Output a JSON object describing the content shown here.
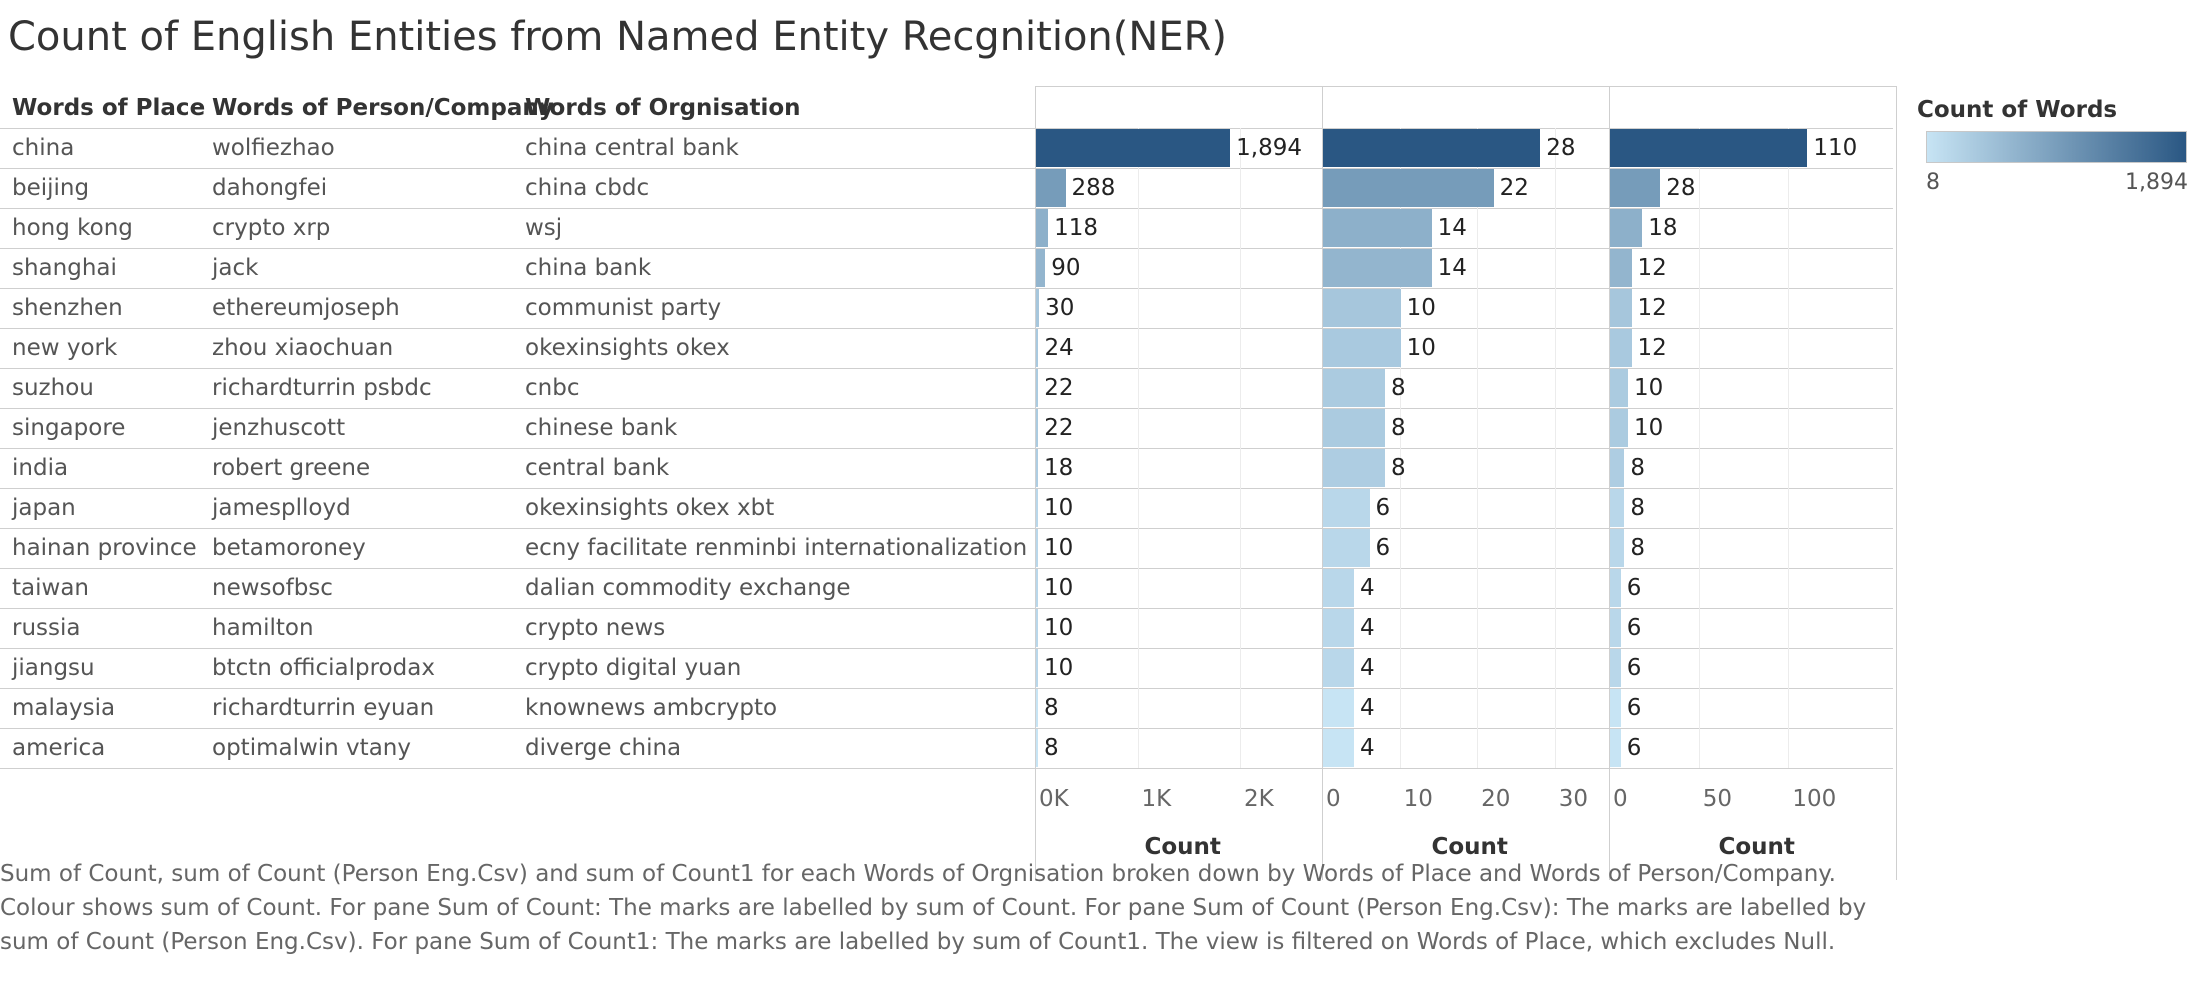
{
  "title": "Count of English Entities from Named Entity Recgnition(NER)",
  "headers": {
    "place": "Words of Place",
    "person": "Words of Person/Company",
    "organisation": "Words of Orgnisation"
  },
  "rows": [
    {
      "place": "china",
      "person": "wolfiezhao",
      "org": "china central bank"
    },
    {
      "place": "beijing",
      "person": "dahongfei",
      "org": "china cbdc"
    },
    {
      "place": "hong kong",
      "person": "crypto xrp",
      "org": "wsj"
    },
    {
      "place": "shanghai",
      "person": "jack",
      "org": "china bank"
    },
    {
      "place": "shenzhen",
      "person": "ethereumjoseph",
      "org": "communist party"
    },
    {
      "place": "new york",
      "person": "zhou xiaochuan",
      "org": "okexinsights okex"
    },
    {
      "place": "suzhou",
      "person": "richardturrin psbdc",
      "org": "cnbc"
    },
    {
      "place": "singapore",
      "person": "jenzhuscott",
      "org": "chinese bank"
    },
    {
      "place": "india",
      "person": "robert greene",
      "org": "central bank"
    },
    {
      "place": "japan",
      "person": "jamesplloyd",
      "org": "okexinsights okex xbt"
    },
    {
      "place": "hainan province",
      "person": "betamoroney",
      "org": "ecny facilitate renminbi internationalization"
    },
    {
      "place": "taiwan",
      "person": "newsofbsc",
      "org": "dalian commodity exchange"
    },
    {
      "place": "russia",
      "person": "hamilton",
      "org": "crypto news"
    },
    {
      "place": "jiangsu",
      "person": "btctn officialprodax",
      "org": "crypto digital yuan"
    },
    {
      "place": "malaysia",
      "person": "richardturrin eyuan",
      "org": "knownews ambcrypto"
    },
    {
      "place": "america",
      "person": "optimalwin vtany",
      "org": "diverge china"
    }
  ],
  "chart_data": [
    {
      "type": "bar",
      "orientation": "horizontal",
      "categories": [
        "china",
        "beijing",
        "hong kong",
        "shanghai",
        "shenzhen",
        "new york",
        "suzhou",
        "singapore",
        "india",
        "japan",
        "hainan province",
        "taiwan",
        "russia",
        "jiangsu",
        "malaysia",
        "america"
      ],
      "values": [
        1894,
        288,
        118,
        90,
        30,
        24,
        22,
        22,
        18,
        10,
        10,
        10,
        10,
        10,
        8,
        8
      ],
      "labels": [
        "1,894",
        "288",
        "118",
        "90",
        "30",
        "24",
        "22",
        "22",
        "18",
        "10",
        "10",
        "10",
        "10",
        "10",
        "8",
        "8"
      ],
      "xlabel": "Count",
      "xlim": [
        0,
        2800
      ],
      "ticks": [
        0,
        1000,
        2000
      ],
      "tick_labels": [
        "0K",
        "1K",
        "2K"
      ]
    },
    {
      "type": "bar",
      "orientation": "horizontal",
      "categories": [
        "wolfiezhao",
        "dahongfei",
        "crypto xrp",
        "jack",
        "ethereumjoseph",
        "zhou xiaochuan",
        "richardturrin psbdc",
        "jenzhuscott",
        "robert greene",
        "jamesplloyd",
        "betamoroney",
        "newsofbsc",
        "hamilton",
        "btctn officialprodax",
        "richardturrin eyuan",
        "optimalwin vtany"
      ],
      "values": [
        28,
        22,
        14,
        14,
        10,
        10,
        8,
        8,
        8,
        6,
        6,
        4,
        4,
        4,
        4,
        4
      ],
      "labels": [
        "28",
        "22",
        "14",
        "14",
        "10",
        "10",
        "8",
        "8",
        "8",
        "6",
        "6",
        "4",
        "4",
        "4",
        "4",
        "4"
      ],
      "xlabel": "Count",
      "xlim": [
        0,
        37
      ],
      "ticks": [
        0,
        10,
        20,
        30
      ],
      "tick_labels": [
        "0",
        "10",
        "20",
        "30"
      ]
    },
    {
      "type": "bar",
      "orientation": "horizontal",
      "categories": [
        "china central bank",
        "china cbdc",
        "wsj",
        "china bank",
        "communist party",
        "okexinsights okex",
        "cnbc",
        "chinese bank",
        "central bank",
        "okexinsights okex xbt",
        "ecny facilitate renminbi internationalization",
        "dalian commodity exchange",
        "crypto news",
        "crypto digital yuan",
        "knownews ambcrypto",
        "diverge china"
      ],
      "values": [
        110,
        28,
        18,
        12,
        12,
        12,
        10,
        10,
        8,
        8,
        8,
        6,
        6,
        6,
        6,
        6
      ],
      "labels": [
        "110",
        "28",
        "18",
        "12",
        "12",
        "12",
        "10",
        "10",
        "8",
        "8",
        "8",
        "6",
        "6",
        "6",
        "6",
        "6"
      ],
      "xlabel": "Count",
      "xlim": [
        0,
        160
      ],
      "ticks": [
        0,
        50,
        100
      ],
      "tick_labels": [
        "0",
        "50",
        "100"
      ]
    }
  ],
  "legend": {
    "title": "Count of Words",
    "min_label": "8",
    "max_label": "1,894",
    "min_value": 8,
    "max_value": 1894,
    "color_low": "#c7e4f4",
    "color_high": "#2a5783"
  },
  "caption": "Sum of Count, sum of Count (Person Eng.Csv) and sum of Count1 for each Words of Orgnisation broken down by Words of Place and Words of Person/Company.  Colour shows sum of Count.  For pane Sum of Count:  The marks are labelled by sum of Count.  For pane Sum of Count (Person Eng.Csv):  The marks are labelled by sum of Count (Person Eng.Csv).  For pane Sum of Count1:  The marks are labelled by sum of Count1. The view is filtered on Words of Place, which excludes Null."
}
